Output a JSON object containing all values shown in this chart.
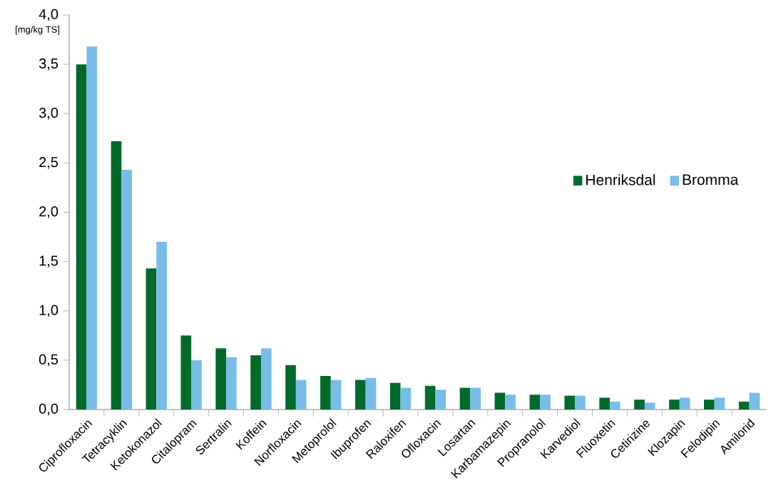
{
  "chart_data": {
    "type": "bar",
    "ylabel": "[mg/kg TS]",
    "categories": [
      "Ciprofloxacin",
      "Tetracyklin",
      "Ketokonazol",
      "Citalopram",
      "Sertralin",
      "Koffein",
      "Norfloxacin",
      "Metoprolol",
      "Ibuprofen",
      "Raloxifen",
      "Ofloxacin",
      "Losartan",
      "Karbamazepin",
      "Propranolol",
      "Karvediol",
      "Fluoxetin",
      "Cetirizine",
      "Klozapin",
      "Felodipin",
      "Amilorid"
    ],
    "series": [
      {
        "name": "Henriksdal",
        "color": "#006a2b",
        "values": [
          3.5,
          2.72,
          1.43,
          0.75,
          0.62,
          0.55,
          0.45,
          0.34,
          0.3,
          0.27,
          0.24,
          0.22,
          0.17,
          0.15,
          0.14,
          0.12,
          0.1,
          0.1,
          0.1,
          0.08
        ]
      },
      {
        "name": "Bromma",
        "color": "#78bde8",
        "values": [
          3.68,
          2.43,
          1.7,
          0.5,
          0.53,
          0.62,
          0.3,
          0.3,
          0.32,
          0.22,
          0.2,
          0.22,
          0.15,
          0.15,
          0.14,
          0.08,
          0.07,
          0.12,
          0.12,
          0.17
        ]
      }
    ],
    "ylim": [
      0,
      4
    ],
    "yticks": [
      {
        "value": 0,
        "label": "0,0"
      },
      {
        "value": 0.5,
        "label": "0,5"
      },
      {
        "value": 1,
        "label": "1,0"
      },
      {
        "value": 1.5,
        "label": "1,5"
      },
      {
        "value": 2,
        "label": "2,0"
      },
      {
        "value": 2.5,
        "label": "2,5"
      },
      {
        "value": 3,
        "label": "3,0"
      },
      {
        "value": 3.5,
        "label": "3,5"
      },
      {
        "value": 4,
        "label": "4,0"
      }
    ],
    "legend": "right",
    "grid": false
  }
}
